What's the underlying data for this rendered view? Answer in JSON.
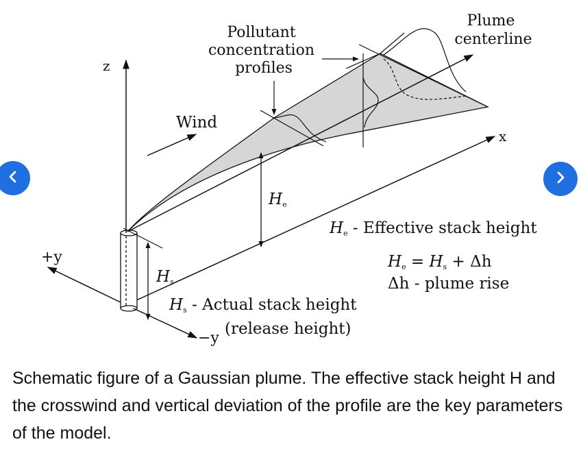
{
  "labels": {
    "z": "z",
    "x": "x",
    "plus_y": "+y",
    "minus_y": "−y",
    "wind": "Wind",
    "profiles_line1": "Pollutant",
    "profiles_line2": "concentration",
    "profiles_line3": "profiles",
    "centerline_line1": "Plume",
    "centerline_line2": "centerline",
    "he_symbol": "H",
    "he_sub": "e",
    "hs_symbol": "H",
    "hs_sub": "s",
    "he_def_sym": "H",
    "he_def_sub": "e",
    "he_def_text": " - Effective stack height",
    "eq_lhs_sym": "H",
    "eq_lhs_sub": "e",
    "eq_mid": " = ",
    "eq_rhs_sym": "H",
    "eq_rhs_sub": "s",
    "eq_tail": " + Δh",
    "rise_text": "Δh - plume rise",
    "hs_def_sym": "H",
    "hs_def_sub": "s",
    "hs_def_text": " - Actual stack height",
    "release_text": "(release height)"
  },
  "caption": "Schematic figure of a Gaussian plume. The effective stack height H and the crosswind and vertical deviation of the profile are the key parameters of the model.",
  "nav": {
    "prev_icon": "chevron-left-icon",
    "next_icon": "chevron-right-icon",
    "accent": "#1f6fe0"
  }
}
